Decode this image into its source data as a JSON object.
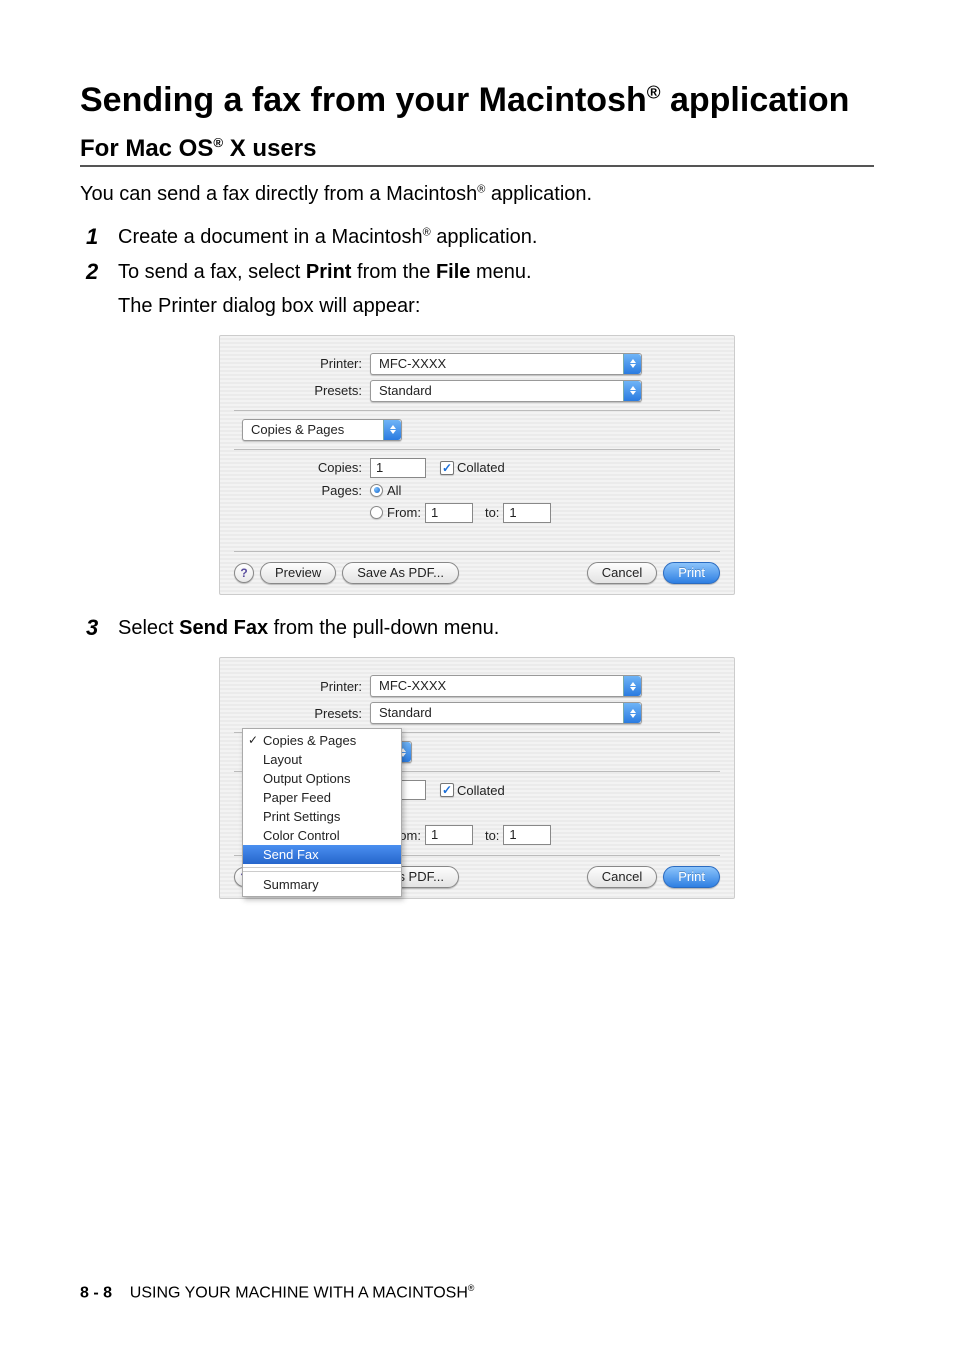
{
  "heading": {
    "title_parts": [
      "Sending a fax from your Macintosh",
      " application"
    ],
    "subtitle_parts": [
      "For Mac OS",
      " X users"
    ]
  },
  "intro": {
    "before": "You can send a fax directly from a Macintosh",
    "after": " application."
  },
  "steps": {
    "s1": {
      "num": "1",
      "before": "Create a document in a Macintosh",
      "after": " application."
    },
    "s2": {
      "num": "2",
      "text_a": "To send a fax, select ",
      "text_b": " from the ",
      "text_c": " menu.",
      "print_word": "Print",
      "file_word": "File",
      "line2": "The Printer dialog box will appear:"
    },
    "s3": {
      "num": "3",
      "text_a": "Select ",
      "sendfax_word": "Send Fax",
      "text_b": " from the pull-down menu."
    }
  },
  "dialog": {
    "labels": {
      "printer": "Printer:",
      "presets": "Presets:",
      "copies": "Copies:",
      "pages": "Pages:",
      "all": "All",
      "from": "From:",
      "to": "to:"
    },
    "values": {
      "printer": "MFC-XXXX",
      "presets": "Standard",
      "section_dropdown": "Copies & Pages",
      "copies": "1",
      "from": "1",
      "to": "1",
      "collated": "Collated"
    },
    "buttons": {
      "help": "?",
      "preview": "Preview",
      "savepdf": "Save As PDF...",
      "cancel": "Cancel",
      "print": "Print"
    }
  },
  "menu": {
    "items": [
      {
        "label": "Copies & Pages",
        "checked": true,
        "highlighted": false
      },
      {
        "label": "Layout",
        "checked": false,
        "highlighted": false
      },
      {
        "label": "Output Options",
        "checked": false,
        "highlighted": false
      },
      {
        "label": "Paper Feed",
        "checked": false,
        "highlighted": false
      },
      {
        "label": "Print Settings",
        "checked": false,
        "highlighted": false
      },
      {
        "label": "Color Control",
        "checked": false,
        "highlighted": false
      },
      {
        "label": "Send Fax",
        "checked": false,
        "highlighted": true
      },
      {
        "label": "Summary",
        "checked": false,
        "highlighted": false
      }
    ]
  },
  "footer": {
    "page": "8 - 8",
    "text_before": "USING YOUR MACHINE WITH A MACINTOSH"
  },
  "reg": "®",
  "styling": {
    "aqua_blue_grad": {
      "from": "#6fb4f7",
      "to": "#2a7be0"
    },
    "primary_btn_grad": {
      "from": "#8cc4fb",
      "to": "#2f7fe2"
    },
    "highlight_menu_grad": {
      "from": "#4a8ff0",
      "to": "#2666cc"
    },
    "background": "#ffffff"
  }
}
